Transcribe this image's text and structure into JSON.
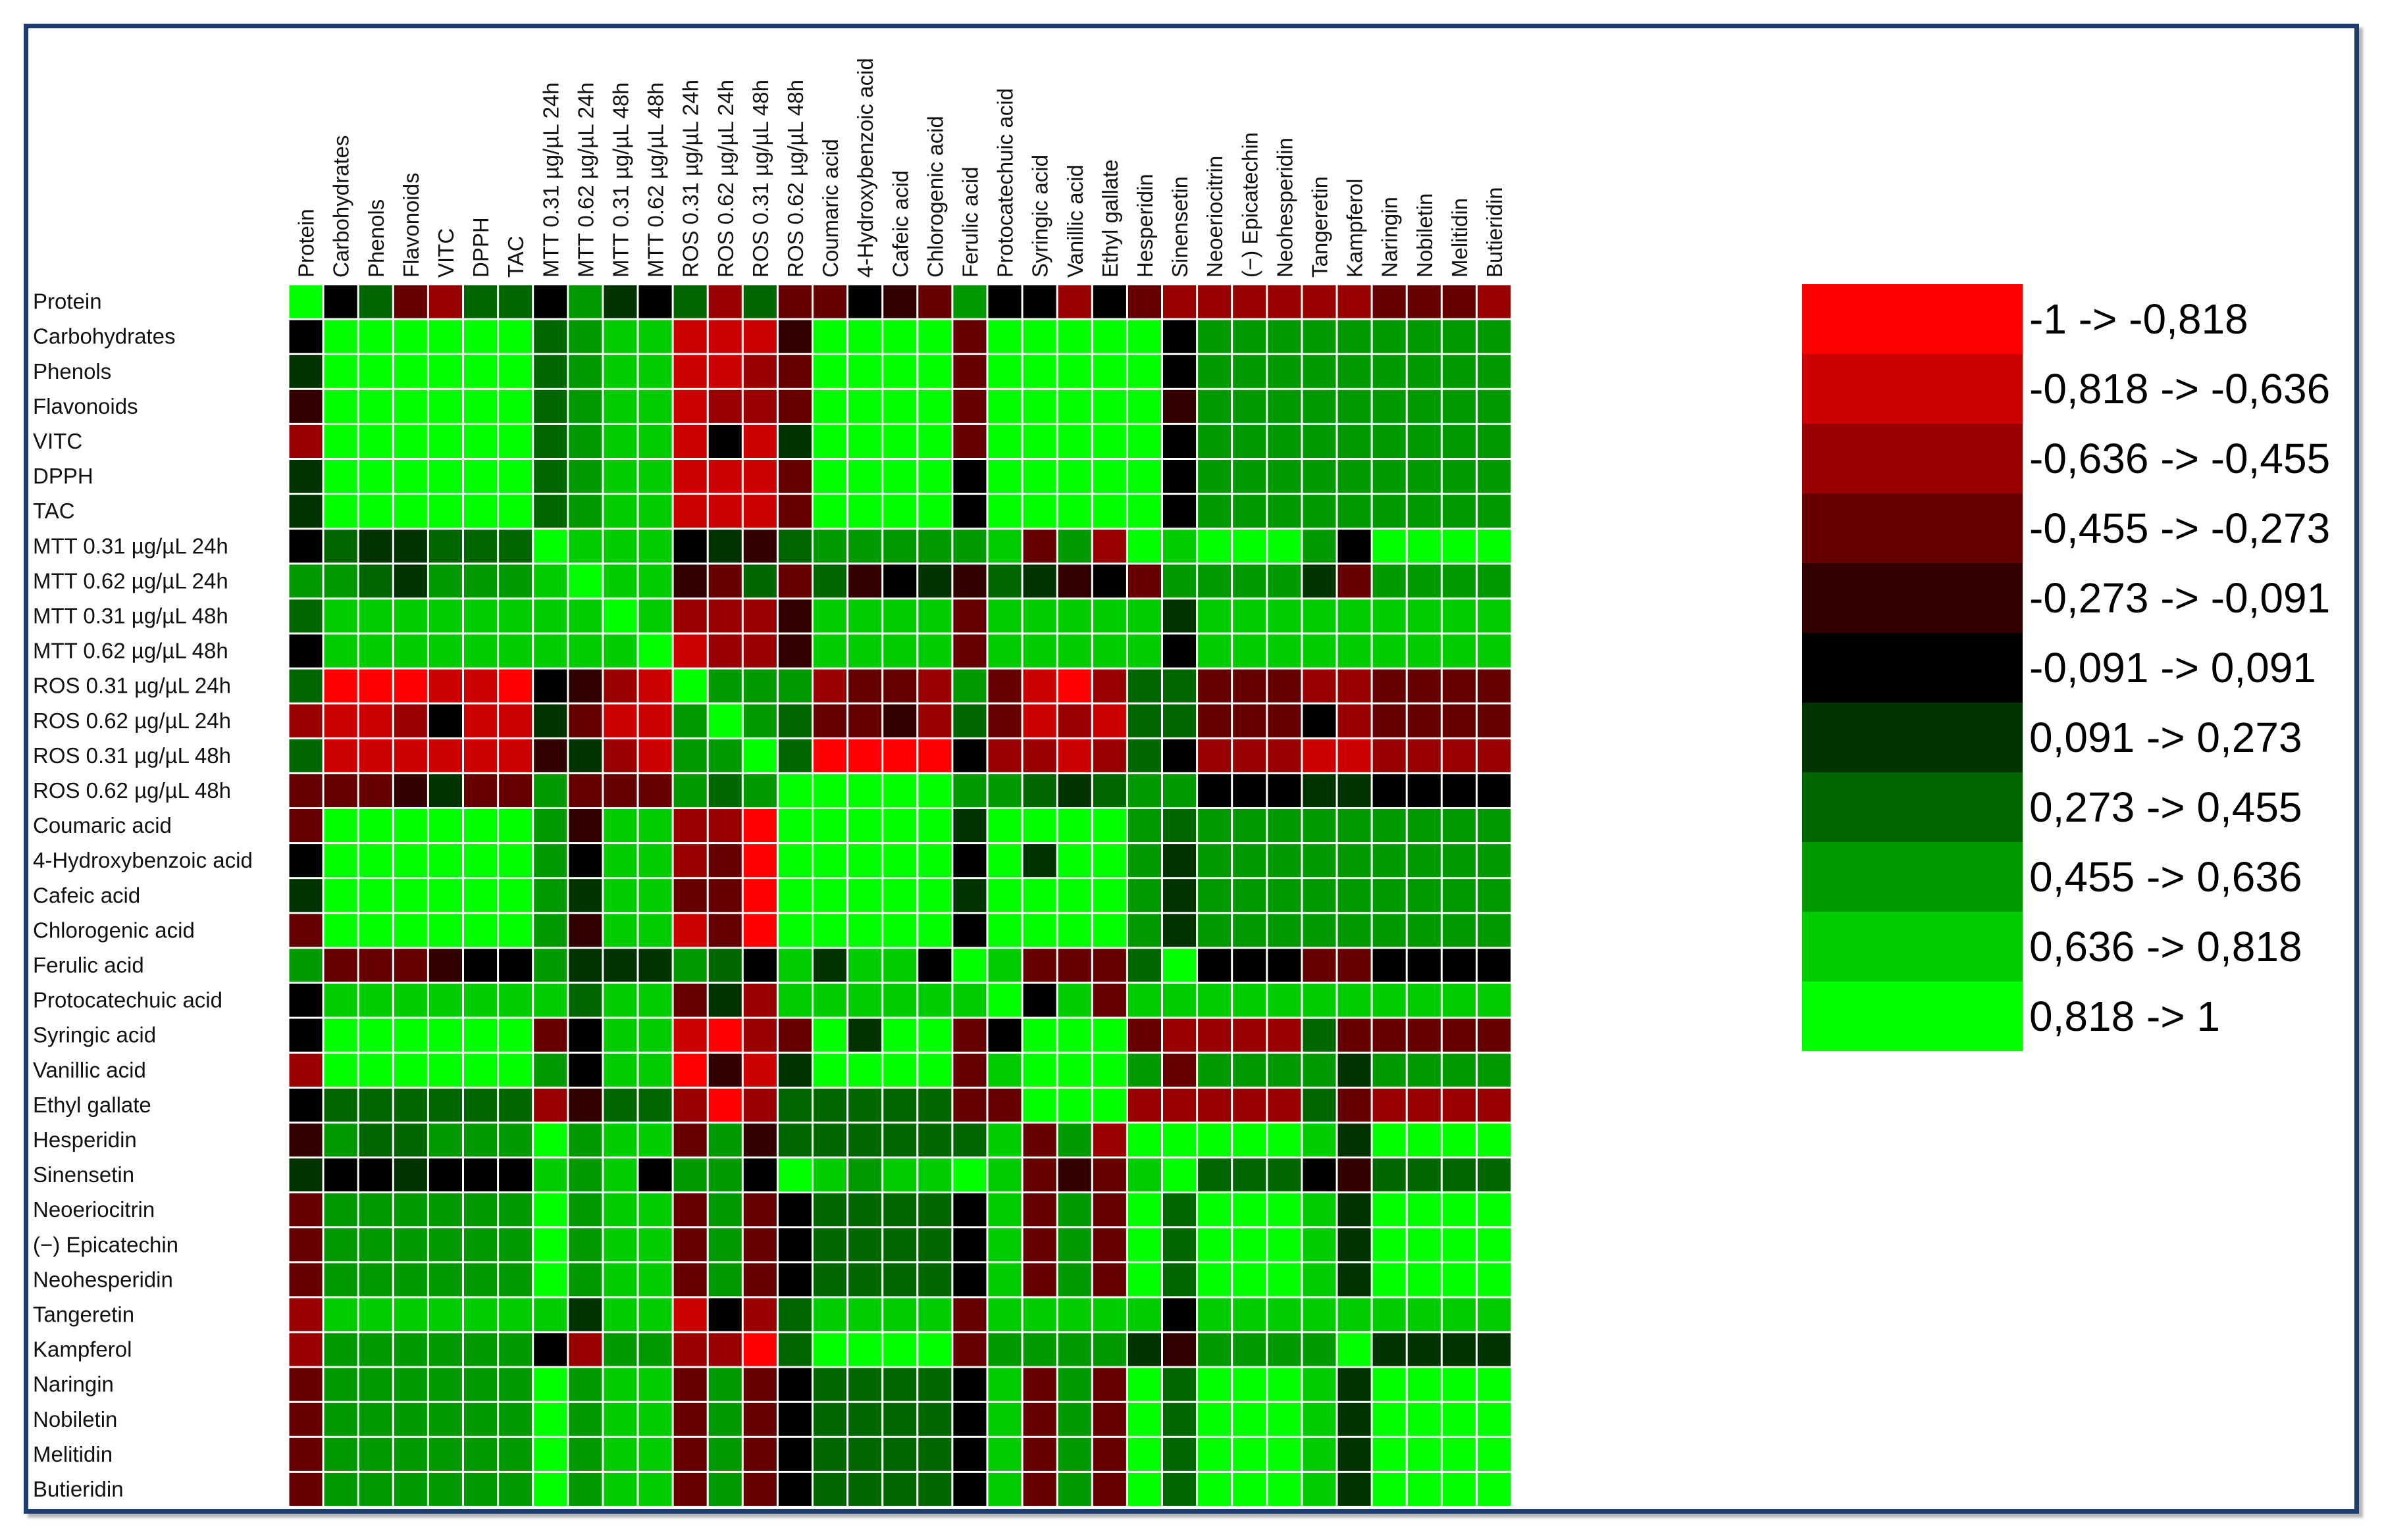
{
  "chart_data": {
    "type": "heatmap",
    "columns": [
      "Protein",
      "Carbohydrates",
      "Phenols",
      "Flavonoids",
      "VITC",
      "DPPH",
      "TAC",
      "MTT 0.31 µg/µL 24h",
      "MTT 0.62 µg/µL 24h",
      "MTT 0.31 µg/µL 48h",
      "MTT 0.62 µg/µL 48h",
      "ROS 0.31 µg/µL 24h",
      "ROS 0.62 µg/µL 24h",
      "ROS 0.31 µg/µL 48h",
      "ROS 0.62 µg/µL 48h",
      "Coumaric acid",
      "4-Hydroxybenzoic acid",
      "Cafeic acid",
      "Chlorogenic acid",
      "Ferulic acid",
      "Protocatechuic acid",
      "Syringic acid",
      "Vanillic acid",
      "Ethyl gallate",
      "Hesperidin",
      "Sinensetin",
      "Neoeriocitrin",
      "(−) Epicatechin",
      "Neohesperidin",
      "Tangeretin",
      "Kampferol",
      "Naringin",
      "Nobiletin",
      "Melitidin",
      "Butieridin"
    ],
    "rows": [
      "Protein",
      "Carbohydrates",
      "Phenols",
      "Flavonoids",
      "VITC",
      "DPPH",
      "TAC",
      "MTT 0.31 µg/µL 24h",
      "MTT 0.62 µg/µL 24h",
      "MTT 0.31 µg/µL 48h",
      "MTT 0.62 µg/µL 48h",
      "ROS 0.31 µg/µL 24h",
      "ROS 0.62 µg/µL 24h",
      "ROS 0.31 µg/µL 48h",
      "ROS 0.62 µg/µL 48h",
      "Coumaric acid",
      "4-Hydroxybenzoic acid",
      "Cafeic acid",
      "Chlorogenic acid",
      "Ferulic acid",
      "Protocatechuic acid",
      "Syringic acid",
      "Vanillic acid",
      "Ethyl gallate",
      "Hesperidin",
      "Sinensetin",
      "Neoeriocitrin",
      "(−) Epicatechin",
      "Neohesperidin",
      "Tangeretin",
      "Kampferol",
      "Naringin",
      "Nobiletin",
      "Melitidin",
      "Butieridin"
    ],
    "bins": [
      "-1 -> -0,818",
      "-0,818 -> -0,636",
      "-0,636 -> -0,455",
      "-0,455 -> -0,273",
      "-0,273 -> -0,091",
      "-0,091 -> 0,091",
      "0,091 -> 0,273",
      "0,273 -> 0,455",
      "0,455 -> 0,636",
      "0,636 -> 0,818",
      "0,818 -> 1"
    ],
    "bin_colors": [
      "#ff0000",
      "#cc0000",
      "#990000",
      "#660000",
      "#330000",
      "#000000",
      "#003300",
      "#006600",
      "#009900",
      "#00cc00",
      "#00ff00"
    ],
    "matrix": [
      [
        10,
        5,
        7,
        3,
        2,
        7,
        7,
        5,
        8,
        6,
        5,
        7,
        2,
        7,
        3,
        3,
        5,
        4,
        3,
        8,
        5,
        5,
        2,
        5,
        3,
        2,
        2,
        2,
        2,
        2,
        2,
        3,
        3,
        3,
        2
      ],
      [
        5,
        10,
        10,
        10,
        10,
        10,
        10,
        7,
        8,
        9,
        9,
        1,
        1,
        1,
        4,
        10,
        10,
        10,
        10,
        3,
        10,
        10,
        10,
        10,
        10,
        5,
        8,
        8,
        8,
        8,
        8,
        8,
        8,
        8,
        8
      ],
      [
        6,
        10,
        10,
        10,
        10,
        10,
        10,
        7,
        8,
        9,
        9,
        1,
        1,
        2,
        3,
        10,
        10,
        10,
        10,
        3,
        10,
        10,
        10,
        10,
        10,
        5,
        8,
        8,
        8,
        8,
        8,
        8,
        8,
        8,
        8
      ],
      [
        4,
        10,
        10,
        10,
        10,
        10,
        10,
        7,
        8,
        9,
        9,
        1,
        2,
        2,
        3,
        10,
        10,
        10,
        10,
        3,
        10,
        10,
        10,
        10,
        10,
        4,
        8,
        8,
        8,
        8,
        8,
        8,
        8,
        8,
        8
      ],
      [
        2,
        10,
        10,
        10,
        10,
        10,
        10,
        7,
        8,
        9,
        9,
        1,
        5,
        1,
        6,
        10,
        10,
        10,
        10,
        3,
        10,
        10,
        10,
        10,
        10,
        5,
        8,
        8,
        8,
        8,
        8,
        8,
        8,
        8,
        8
      ],
      [
        6,
        10,
        10,
        10,
        10,
        10,
        10,
        7,
        8,
        9,
        9,
        1,
        1,
        1,
        3,
        10,
        10,
        10,
        10,
        5,
        10,
        10,
        10,
        10,
        10,
        5,
        8,
        8,
        8,
        8,
        8,
        8,
        8,
        8,
        8
      ],
      [
        6,
        10,
        10,
        10,
        10,
        10,
        10,
        7,
        8,
        9,
        9,
        1,
        1,
        1,
        3,
        10,
        10,
        10,
        10,
        5,
        10,
        10,
        10,
        10,
        10,
        5,
        8,
        8,
        8,
        8,
        8,
        8,
        8,
        8,
        8
      ],
      [
        5,
        7,
        6,
        6,
        7,
        7,
        7,
        10,
        9,
        9,
        9,
        5,
        6,
        4,
        7,
        8,
        8,
        8,
        8,
        8,
        9,
        3,
        8,
        2,
        10,
        9,
        10,
        10,
        10,
        8,
        5,
        10,
        10,
        10,
        10
      ],
      [
        8,
        8,
        7,
        6,
        8,
        8,
        8,
        9,
        10,
        9,
        9,
        4,
        3,
        7,
        3,
        7,
        4,
        5,
        6,
        4,
        7,
        6,
        4,
        5,
        3,
        8,
        8,
        8,
        8,
        6,
        3,
        8,
        8,
        8,
        8
      ],
      [
        7,
        9,
        9,
        9,
        9,
        9,
        9,
        9,
        9,
        10,
        9,
        2,
        2,
        2,
        4,
        9,
        9,
        9,
        9,
        3,
        9,
        9,
        9,
        9,
        9,
        6,
        9,
        9,
        9,
        9,
        9,
        9,
        9,
        9,
        9
      ],
      [
        5,
        9,
        9,
        9,
        9,
        9,
        9,
        9,
        9,
        9,
        10,
        1,
        2,
        2,
        4,
        9,
        9,
        9,
        9,
        3,
        9,
        9,
        9,
        9,
        9,
        5,
        9,
        9,
        9,
        9,
        9,
        9,
        9,
        9,
        9
      ],
      [
        7,
        0,
        0,
        0,
        1,
        1,
        0,
        5,
        4,
        2,
        1,
        10,
        8,
        8,
        8,
        2,
        3,
        3,
        2,
        8,
        3,
        1,
        0,
        2,
        7,
        7,
        3,
        3,
        3,
        2,
        2,
        3,
        3,
        3,
        3
      ],
      [
        2,
        1,
        1,
        2,
        5,
        1,
        1,
        6,
        3,
        1,
        1,
        8,
        10,
        8,
        7,
        3,
        3,
        4,
        2,
        7,
        3,
        1,
        2,
        1,
        7,
        7,
        3,
        3,
        3,
        5,
        2,
        3,
        3,
        3,
        3
      ],
      [
        7,
        1,
        1,
        1,
        1,
        1,
        1,
        4,
        6,
        2,
        1,
        8,
        8,
        10,
        7,
        0,
        0,
        0,
        0,
        5,
        2,
        2,
        1,
        2,
        7,
        5,
        2,
        2,
        2,
        1,
        1,
        2,
        2,
        2,
        2
      ],
      [
        3,
        3,
        3,
        4,
        6,
        3,
        3,
        8,
        3,
        3,
        3,
        8,
        7,
        8,
        10,
        10,
        10,
        10,
        10,
        8,
        8,
        7,
        6,
        7,
        8,
        8,
        5,
        5,
        5,
        6,
        6,
        5,
        5,
        5,
        5
      ],
      [
        3,
        10,
        10,
        10,
        10,
        10,
        10,
        8,
        4,
        9,
        9,
        2,
        2,
        0,
        10,
        10,
        10,
        10,
        10,
        6,
        10,
        10,
        10,
        10,
        8,
        7,
        8,
        8,
        8,
        8,
        8,
        8,
        8,
        8,
        8
      ],
      [
        5,
        10,
        10,
        10,
        10,
        10,
        10,
        8,
        5,
        9,
        9,
        2,
        3,
        0,
        10,
        10,
        10,
        10,
        10,
        5,
        10,
        6,
        10,
        10,
        8,
        6,
        8,
        8,
        8,
        8,
        8,
        8,
        8,
        8,
        8
      ],
      [
        6,
        10,
        10,
        10,
        10,
        10,
        10,
        8,
        6,
        9,
        9,
        3,
        3,
        0,
        10,
        10,
        10,
        10,
        10,
        6,
        10,
        10,
        10,
        10,
        8,
        6,
        8,
        8,
        8,
        8,
        8,
        8,
        8,
        8,
        8
      ],
      [
        3,
        10,
        10,
        10,
        10,
        10,
        10,
        8,
        4,
        9,
        9,
        1,
        3,
        0,
        10,
        10,
        10,
        10,
        10,
        5,
        10,
        10,
        10,
        10,
        8,
        6,
        8,
        8,
        8,
        8,
        8,
        8,
        8,
        8,
        8
      ],
      [
        8,
        3,
        3,
        3,
        4,
        5,
        5,
        8,
        6,
        6,
        6,
        8,
        7,
        5,
        9,
        6,
        9,
        9,
        5,
        10,
        9,
        3,
        3,
        3,
        7,
        10,
        5,
        5,
        5,
        3,
        3,
        5,
        5,
        5,
        5
      ],
      [
        5,
        9,
        9,
        9,
        9,
        9,
        9,
        9,
        7,
        9,
        9,
        3,
        6,
        2,
        9,
        9,
        9,
        9,
        9,
        9,
        10,
        5,
        9,
        3,
        9,
        9,
        9,
        9,
        9,
        9,
        9,
        9,
        9,
        9,
        9
      ],
      [
        5,
        10,
        10,
        10,
        10,
        10,
        10,
        3,
        5,
        9,
        9,
        1,
        0,
        2,
        3,
        10,
        6,
        10,
        10,
        3,
        5,
        10,
        10,
        10,
        3,
        2,
        2,
        2,
        2,
        7,
        3,
        3,
        3,
        3,
        3
      ],
      [
        2,
        10,
        10,
        10,
        10,
        10,
        10,
        8,
        5,
        9,
        9,
        0,
        4,
        1,
        6,
        10,
        10,
        10,
        10,
        3,
        9,
        10,
        10,
        10,
        8,
        3,
        8,
        8,
        8,
        8,
        6,
        8,
        8,
        8,
        8
      ],
      [
        5,
        7,
        7,
        7,
        7,
        7,
        7,
        2,
        4,
        7,
        7,
        2,
        0,
        2,
        7,
        7,
        7,
        7,
        7,
        3,
        3,
        10,
        10,
        10,
        2,
        2,
        2,
        2,
        2,
        7,
        3,
        2,
        2,
        2,
        2
      ],
      [
        4,
        8,
        7,
        7,
        8,
        8,
        8,
        10,
        8,
        9,
        9,
        3,
        8,
        4,
        7,
        7,
        7,
        7,
        7,
        7,
        9,
        3,
        8,
        2,
        10,
        10,
        10,
        10,
        10,
        9,
        6,
        10,
        10,
        10,
        10
      ],
      [
        6,
        5,
        5,
        6,
        5,
        5,
        5,
        9,
        8,
        9,
        5,
        8,
        8,
        5,
        10,
        9,
        8,
        9,
        9,
        10,
        9,
        3,
        4,
        3,
        9,
        10,
        7,
        7,
        7,
        5,
        4,
        7,
        7,
        7,
        7
      ],
      [
        3,
        8,
        8,
        8,
        8,
        8,
        8,
        10,
        8,
        9,
        9,
        3,
        8,
        3,
        5,
        7,
        7,
        7,
        7,
        5,
        9,
        3,
        8,
        3,
        10,
        7,
        10,
        10,
        10,
        9,
        6,
        10,
        10,
        10,
        10
      ],
      [
        3,
        8,
        8,
        8,
        8,
        8,
        8,
        10,
        8,
        9,
        9,
        3,
        8,
        3,
        5,
        7,
        7,
        7,
        7,
        5,
        9,
        3,
        8,
        3,
        10,
        7,
        10,
        10,
        10,
        9,
        6,
        10,
        10,
        10,
        10
      ],
      [
        3,
        8,
        8,
        8,
        8,
        8,
        8,
        10,
        8,
        9,
        9,
        3,
        8,
        3,
        5,
        7,
        7,
        7,
        7,
        5,
        9,
        3,
        8,
        3,
        10,
        7,
        10,
        10,
        10,
        9,
        6,
        10,
        10,
        10,
        10
      ],
      [
        2,
        9,
        9,
        9,
        9,
        9,
        9,
        9,
        6,
        9,
        9,
        1,
        5,
        2,
        7,
        9,
        9,
        9,
        9,
        3,
        9,
        9,
        9,
        9,
        9,
        5,
        9,
        9,
        9,
        9,
        9,
        9,
        9,
        9,
        9
      ],
      [
        2,
        8,
        8,
        8,
        8,
        8,
        8,
        5,
        2,
        8,
        8,
        2,
        2,
        0,
        7,
        10,
        10,
        10,
        10,
        3,
        8,
        8,
        8,
        8,
        6,
        4,
        8,
        8,
        8,
        8,
        10,
        6,
        6,
        6,
        6
      ],
      [
        3,
        8,
        8,
        8,
        8,
        8,
        8,
        10,
        8,
        9,
        9,
        3,
        8,
        3,
        5,
        7,
        7,
        7,
        7,
        5,
        9,
        3,
        8,
        3,
        10,
        7,
        10,
        10,
        10,
        9,
        6,
        10,
        10,
        10,
        10
      ],
      [
        3,
        8,
        8,
        8,
        8,
        8,
        8,
        10,
        8,
        9,
        9,
        3,
        8,
        3,
        5,
        7,
        7,
        7,
        7,
        5,
        9,
        3,
        8,
        3,
        10,
        7,
        10,
        10,
        10,
        9,
        6,
        10,
        10,
        10,
        10
      ],
      [
        3,
        8,
        8,
        8,
        8,
        8,
        8,
        10,
        8,
        9,
        9,
        3,
        8,
        3,
        5,
        7,
        7,
        7,
        7,
        5,
        9,
        3,
        8,
        3,
        10,
        7,
        10,
        10,
        10,
        9,
        6,
        10,
        10,
        10,
        10
      ],
      [
        3,
        8,
        8,
        8,
        8,
        8,
        8,
        10,
        8,
        9,
        9,
        3,
        8,
        3,
        5,
        7,
        7,
        7,
        7,
        5,
        9,
        3,
        8,
        3,
        10,
        7,
        10,
        10,
        10,
        9,
        6,
        10,
        10,
        10,
        10
      ]
    ],
    "legend_placement": "right"
  }
}
